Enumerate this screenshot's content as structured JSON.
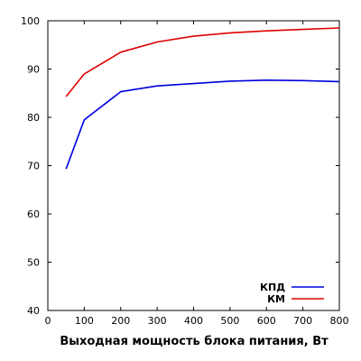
{
  "chart_data": {
    "type": "line",
    "title": "",
    "xlabel": "Выходная мощность блока питания, Вт",
    "ylabel": "",
    "xlim": [
      0,
      800
    ],
    "ylim": [
      40,
      100
    ],
    "xticks": [
      0,
      100,
      200,
      300,
      400,
      500,
      600,
      700,
      800
    ],
    "yticks": [
      40,
      50,
      60,
      70,
      80,
      90,
      100
    ],
    "grid": false,
    "legend": "bottom-right",
    "series": [
      {
        "name": "КПД",
        "color": "#0000e0",
        "x": [
          50,
          100,
          200,
          300,
          400,
          500,
          600,
          700,
          800
        ],
        "values": [
          69.3,
          79.5,
          85.3,
          86.5,
          87.0,
          87.5,
          87.7,
          87.6,
          87.4
        ]
      },
      {
        "name": "КМ",
        "color": "#e00000",
        "x": [
          50,
          100,
          200,
          300,
          400,
          500,
          600,
          700,
          800
        ],
        "values": [
          84.3,
          89.0,
          93.5,
          95.6,
          96.8,
          97.5,
          97.9,
          98.2,
          98.5
        ]
      }
    ]
  }
}
